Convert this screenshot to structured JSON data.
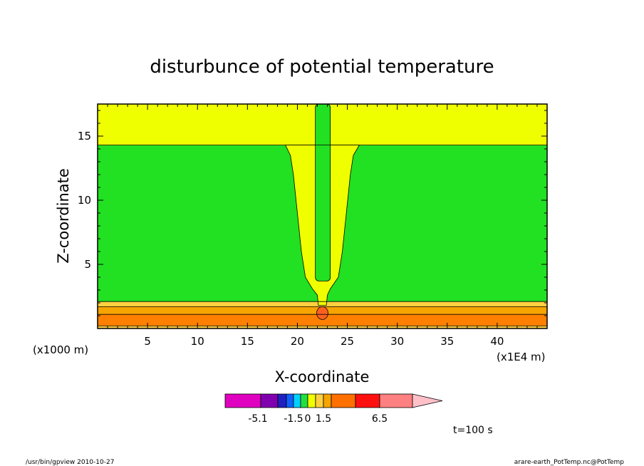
{
  "chart_data": {
    "type": "heatmap",
    "title": "disturbunce of potential temperature",
    "xlabel": "X-coordinate",
    "ylabel": "Z-coordinate",
    "x_unit_label": "(x1E4 m)",
    "y_unit_label": "(x1000 m)",
    "xlim": [
      0,
      45
    ],
    "ylim": [
      0,
      17.5
    ],
    "x_ticks": [
      5,
      10,
      15,
      20,
      25,
      30,
      35,
      40
    ],
    "x_tick_labels": [
      "5",
      "10",
      "15",
      "20",
      "25",
      "30",
      "35",
      "40"
    ],
    "y_ticks": [
      5,
      10,
      15
    ],
    "y_tick_labels": [
      "5",
      "10",
      "15"
    ],
    "colors": {
      "upper_layer": "#f0ff00",
      "middle_layer": "#22e022",
      "thin_band": "#ffd040",
      "lower_band": "#f5a400",
      "surface_band": "#ff8000",
      "core": "#ff6020"
    },
    "layers": [
      {
        "name": "upper",
        "z_min": 14.3,
        "z_max": 17.5,
        "color_key": "upper_layer"
      },
      {
        "name": "middle",
        "z_min": 2.1,
        "z_max": 14.3,
        "color_key": "middle_layer"
      },
      {
        "name": "band1",
        "z_min": 1.7,
        "z_max": 2.1,
        "color_key": "thin_band"
      },
      {
        "name": "band2",
        "z_min": 1.1,
        "z_max": 1.7,
        "color_key": "lower_band"
      },
      {
        "name": "band3",
        "z_min": 0.2,
        "z_max": 1.1,
        "color_key": "surface_band"
      }
    ],
    "plume": {
      "center_x": 22.5,
      "funnel_left": [
        [
          18.8,
          14.3
        ],
        [
          19.3,
          13.5
        ],
        [
          19.6,
          12
        ],
        [
          20,
          9
        ],
        [
          20.4,
          6
        ],
        [
          20.8,
          4
        ],
        [
          21.5,
          3.1
        ],
        [
          22,
          2.6
        ]
      ],
      "funnel_right": [
        [
          26.2,
          14.3
        ],
        [
          25.6,
          13.5
        ],
        [
          25.3,
          12
        ],
        [
          24.9,
          9
        ],
        [
          24.5,
          6
        ],
        [
          24.1,
          4
        ],
        [
          23.3,
          3.1
        ],
        [
          23,
          2.6
        ]
      ],
      "inner_column_x": [
        21.8,
        23.3
      ],
      "inner_column_z": [
        3.7,
        17.5
      ],
      "core_center": [
        22.5,
        1.2
      ]
    },
    "colorbar": {
      "levels": [
        "-5.1",
        "-1.5",
        "0",
        "1.5",
        "6.5"
      ],
      "colors": [
        "#e000c0",
        "#8000b0",
        "#2020c0",
        "#1060ff",
        "#00d0ff",
        "#20e040",
        "#f0ff00",
        "#ffd040",
        "#f5a400",
        "#ff7000",
        "#ff1010",
        "#ff8080",
        "#ffc0c8"
      ]
    },
    "annotation": "t=100 s"
  },
  "footer": {
    "left": "/usr/bin/gpview   2010-10-27",
    "right": "arare-earth_PotTemp.nc@PotTemp"
  }
}
